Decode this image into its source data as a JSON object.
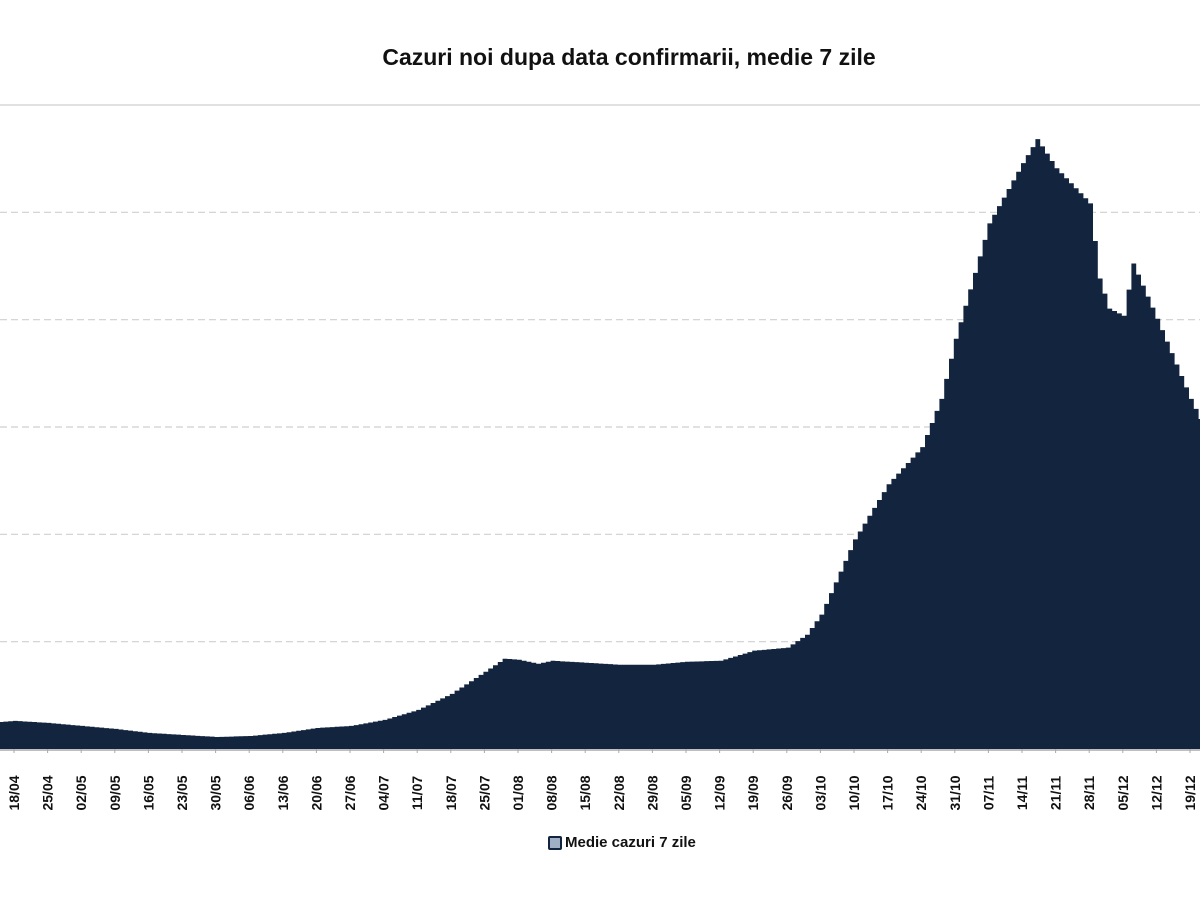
{
  "chart_data": {
    "type": "area",
    "title": "Cazuri noi dupa data confirmarii, medie 7 zile",
    "xlabel": "",
    "ylabel": "",
    "ylim": [
      0,
      6000
    ],
    "grid": true,
    "y_grid_step": 1000,
    "legend_position": "bottom",
    "series": [
      {
        "name": "Medie cazuri 7 zile",
        "color": "#13243f",
        "points": [
          [
            "15/04",
            252
          ],
          [
            "18/04",
            262
          ],
          [
            "25/04",
            243
          ],
          [
            "02/05",
            215
          ],
          [
            "09/05",
            187
          ],
          [
            "16/05",
            150
          ],
          [
            "23/05",
            131
          ],
          [
            "30/05",
            112
          ],
          [
            "06/06",
            121
          ],
          [
            "13/06",
            150
          ],
          [
            "20/06",
            196
          ],
          [
            "27/06",
            215
          ],
          [
            "04/07",
            271
          ],
          [
            "11/07",
            364
          ],
          [
            "18/07",
            514
          ],
          [
            "25/07",
            720
          ],
          [
            "29/07",
            841
          ],
          [
            "01/08",
            832
          ],
          [
            "05/08",
            794
          ],
          [
            "08/08",
            822
          ],
          [
            "15/08",
            804
          ],
          [
            "22/08",
            785
          ],
          [
            "29/08",
            785
          ],
          [
            "05/09",
            813
          ],
          [
            "12/09",
            822
          ],
          [
            "19/09",
            916
          ],
          [
            "26/09",
            944
          ],
          [
            "30/09",
            1065
          ],
          [
            "03/10",
            1252
          ],
          [
            "10/10",
            1953
          ],
          [
            "17/10",
            2467
          ],
          [
            "24/10",
            2813
          ],
          [
            "28/10",
            3262
          ],
          [
            "31/10",
            3822
          ],
          [
            "07/11",
            4897
          ],
          [
            "14/11",
            5458
          ],
          [
            "17/11",
            5682
          ],
          [
            "21/11",
            5411
          ],
          [
            "28/11",
            5084
          ],
          [
            "30/11",
            4383
          ],
          [
            "02/12",
            4103
          ],
          [
            "05/12",
            4037
          ],
          [
            "07/12",
            4523
          ],
          [
            "12/12",
            4009
          ],
          [
            "19/12",
            3262
          ],
          [
            "21/12",
            3075
          ]
        ]
      }
    ],
    "x_tick_labels": [
      "18/04",
      "25/04",
      "02/05",
      "09/05",
      "16/05",
      "23/05",
      "30/05",
      "06/06",
      "13/06",
      "20/06",
      "27/06",
      "04/07",
      "11/07",
      "18/07",
      "25/07",
      "01/08",
      "08/08",
      "15/08",
      "22/08",
      "29/08",
      "05/09",
      "12/09",
      "19/09",
      "26/09",
      "03/10",
      "10/10",
      "17/10",
      "24/10",
      "31/10",
      "07/11",
      "14/11",
      "21/11",
      "28/11",
      "05/12",
      "12/12",
      "19/12"
    ]
  }
}
